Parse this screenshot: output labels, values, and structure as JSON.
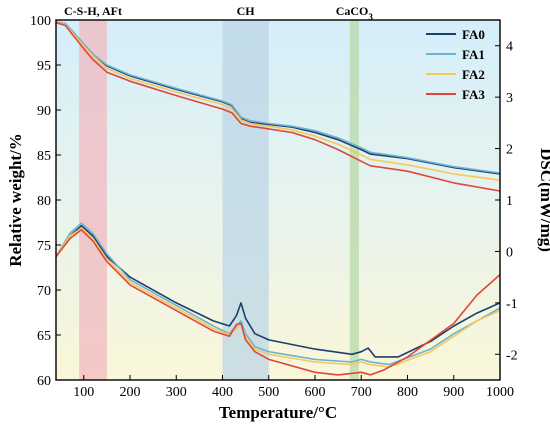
{
  "chart_data": {
    "type": "line",
    "xlabel": "Temperature/°C",
    "ylabel": "Relative weight/%",
    "y2label": "DSC(mW/mg)",
    "xlim": [
      40,
      1000
    ],
    "ylim": [
      60,
      100
    ],
    "y2lim": [
      -2.5,
      4.5
    ],
    "x_ticks": [
      "100",
      "200",
      "300",
      "400",
      "500",
      "600",
      "700",
      "800",
      "900",
      "1000"
    ],
    "y_ticks": [
      "60",
      "65",
      "70",
      "75",
      "80",
      "85",
      "90",
      "95",
      "100"
    ],
    "y2_ticks": [
      "-2",
      "-1",
      "0",
      "1",
      "2",
      "3",
      "4"
    ],
    "bands": [
      {
        "label": "C-S-H, AFt",
        "x0": 90,
        "x1": 150,
        "color": "#f0b8c0"
      },
      {
        "label": "CH",
        "x0": 400,
        "x1": 500,
        "color": "#bcd6e6"
      },
      {
        "label": "CaCO",
        "sub": "3",
        "x0": 675,
        "x1": 695,
        "color": "#b8d8a8"
      }
    ],
    "legend": {
      "position": "top-right"
    },
    "series": [
      {
        "name": "FA0",
        "color": "#1c3f6e",
        "tg": [
          [
            40,
            99.8
          ],
          [
            60,
            99.6
          ],
          [
            80,
            98.5
          ],
          [
            100,
            97.3
          ],
          [
            120,
            96.2
          ],
          [
            150,
            94.9
          ],
          [
            200,
            93.8
          ],
          [
            300,
            92.3
          ],
          [
            400,
            90.9
          ],
          [
            420,
            90.5
          ],
          [
            440,
            89.0
          ],
          [
            460,
            88.6
          ],
          [
            500,
            88.4
          ],
          [
            550,
            88.1
          ],
          [
            600,
            87.5
          ],
          [
            650,
            86.7
          ],
          [
            700,
            85.6
          ],
          [
            720,
            85.1
          ],
          [
            800,
            84.6
          ],
          [
            900,
            83.6
          ],
          [
            1000,
            82.9
          ]
        ],
        "dsc": [
          [
            40,
            -0.1
          ],
          [
            70,
            0.3
          ],
          [
            95,
            0.5
          ],
          [
            120,
            0.3
          ],
          [
            150,
            -0.1
          ],
          [
            200,
            -0.5
          ],
          [
            300,
            -1.0
          ],
          [
            380,
            -1.35
          ],
          [
            415,
            -1.45
          ],
          [
            430,
            -1.25
          ],
          [
            440,
            -1.0
          ],
          [
            450,
            -1.3
          ],
          [
            470,
            -1.6
          ],
          [
            500,
            -1.72
          ],
          [
            600,
            -1.9
          ],
          [
            680,
            -2.0
          ],
          [
            700,
            -1.95
          ],
          [
            715,
            -1.88
          ],
          [
            730,
            -2.05
          ],
          [
            780,
            -2.05
          ],
          [
            850,
            -1.75
          ],
          [
            900,
            -1.45
          ],
          [
            950,
            -1.2
          ],
          [
            1000,
            -1.0
          ]
        ]
      },
      {
        "name": "FA1",
        "color": "#6bb3d4",
        "tg": [
          [
            40,
            99.8
          ],
          [
            60,
            99.6
          ],
          [
            80,
            98.5
          ],
          [
            100,
            97.3
          ],
          [
            120,
            96.2
          ],
          [
            150,
            95.0
          ],
          [
            200,
            93.9
          ],
          [
            300,
            92.4
          ],
          [
            400,
            91.0
          ],
          [
            420,
            90.6
          ],
          [
            440,
            89.2
          ],
          [
            460,
            88.8
          ],
          [
            500,
            88.5
          ],
          [
            550,
            88.2
          ],
          [
            600,
            87.7
          ],
          [
            650,
            86.9
          ],
          [
            700,
            85.8
          ],
          [
            720,
            85.3
          ],
          [
            800,
            84.7
          ],
          [
            900,
            83.7
          ],
          [
            1000,
            83.0
          ]
        ],
        "dsc": [
          [
            40,
            -0.1
          ],
          [
            70,
            0.35
          ],
          [
            95,
            0.55
          ],
          [
            120,
            0.35
          ],
          [
            150,
            -0.05
          ],
          [
            200,
            -0.55
          ],
          [
            300,
            -1.05
          ],
          [
            380,
            -1.45
          ],
          [
            415,
            -1.6
          ],
          [
            430,
            -1.45
          ],
          [
            440,
            -1.35
          ],
          [
            450,
            -1.6
          ],
          [
            470,
            -1.85
          ],
          [
            500,
            -1.95
          ],
          [
            600,
            -2.1
          ],
          [
            680,
            -2.15
          ],
          [
            700,
            -2.1
          ],
          [
            720,
            -2.15
          ],
          [
            760,
            -2.2
          ],
          [
            850,
            -1.9
          ],
          [
            900,
            -1.6
          ],
          [
            950,
            -1.35
          ],
          [
            1000,
            -1.1
          ]
        ]
      },
      {
        "name": "FA2",
        "color": "#f5c85a",
        "tg": [
          [
            40,
            99.8
          ],
          [
            60,
            99.5
          ],
          [
            80,
            98.3
          ],
          [
            100,
            97.1
          ],
          [
            120,
            96.0
          ],
          [
            150,
            94.6
          ],
          [
            200,
            93.5
          ],
          [
            300,
            92.0
          ],
          [
            400,
            90.6
          ],
          [
            420,
            90.2
          ],
          [
            440,
            88.9
          ],
          [
            460,
            88.5
          ],
          [
            500,
            88.2
          ],
          [
            550,
            87.8
          ],
          [
            600,
            87.1
          ],
          [
            650,
            86.2
          ],
          [
            700,
            85.0
          ],
          [
            720,
            84.5
          ],
          [
            800,
            83.9
          ],
          [
            900,
            82.9
          ],
          [
            1000,
            82.2
          ]
        ],
        "dsc": [
          [
            40,
            -0.1
          ],
          [
            70,
            0.3
          ],
          [
            95,
            0.45
          ],
          [
            120,
            0.25
          ],
          [
            150,
            -0.15
          ],
          [
            200,
            -0.6
          ],
          [
            300,
            -1.1
          ],
          [
            380,
            -1.5
          ],
          [
            415,
            -1.62
          ],
          [
            430,
            -1.5
          ],
          [
            440,
            -1.42
          ],
          [
            450,
            -1.65
          ],
          [
            470,
            -1.9
          ],
          [
            500,
            -2.0
          ],
          [
            600,
            -2.15
          ],
          [
            680,
            -2.2
          ],
          [
            700,
            -2.15
          ],
          [
            720,
            -2.2
          ],
          [
            760,
            -2.25
          ],
          [
            850,
            -1.95
          ],
          [
            900,
            -1.65
          ],
          [
            950,
            -1.35
          ],
          [
            1000,
            -1.15
          ]
        ]
      },
      {
        "name": "FA3",
        "color": "#e0463c",
        "tg": [
          [
            40,
            99.7
          ],
          [
            60,
            99.4
          ],
          [
            80,
            98.1
          ],
          [
            100,
            96.8
          ],
          [
            120,
            95.6
          ],
          [
            150,
            94.2
          ],
          [
            200,
            93.2
          ],
          [
            300,
            91.6
          ],
          [
            400,
            90.1
          ],
          [
            420,
            89.7
          ],
          [
            440,
            88.5
          ],
          [
            460,
            88.2
          ],
          [
            500,
            87.9
          ],
          [
            550,
            87.5
          ],
          [
            600,
            86.7
          ],
          [
            650,
            85.6
          ],
          [
            700,
            84.3
          ],
          [
            720,
            83.8
          ],
          [
            800,
            83.2
          ],
          [
            900,
            81.9
          ],
          [
            1000,
            81.0
          ]
        ],
        "dsc": [
          [
            40,
            -0.1
          ],
          [
            70,
            0.25
          ],
          [
            95,
            0.42
          ],
          [
            120,
            0.2
          ],
          [
            150,
            -0.2
          ],
          [
            200,
            -0.65
          ],
          [
            300,
            -1.15
          ],
          [
            380,
            -1.55
          ],
          [
            415,
            -1.65
          ],
          [
            430,
            -1.42
          ],
          [
            440,
            -1.4
          ],
          [
            450,
            -1.72
          ],
          [
            470,
            -1.95
          ],
          [
            500,
            -2.1
          ],
          [
            600,
            -2.35
          ],
          [
            650,
            -2.4
          ],
          [
            700,
            -2.35
          ],
          [
            720,
            -2.4
          ],
          [
            750,
            -2.3
          ],
          [
            800,
            -2.05
          ],
          [
            900,
            -1.4
          ],
          [
            950,
            -0.85
          ],
          [
            1000,
            -0.45
          ]
        ]
      }
    ]
  }
}
